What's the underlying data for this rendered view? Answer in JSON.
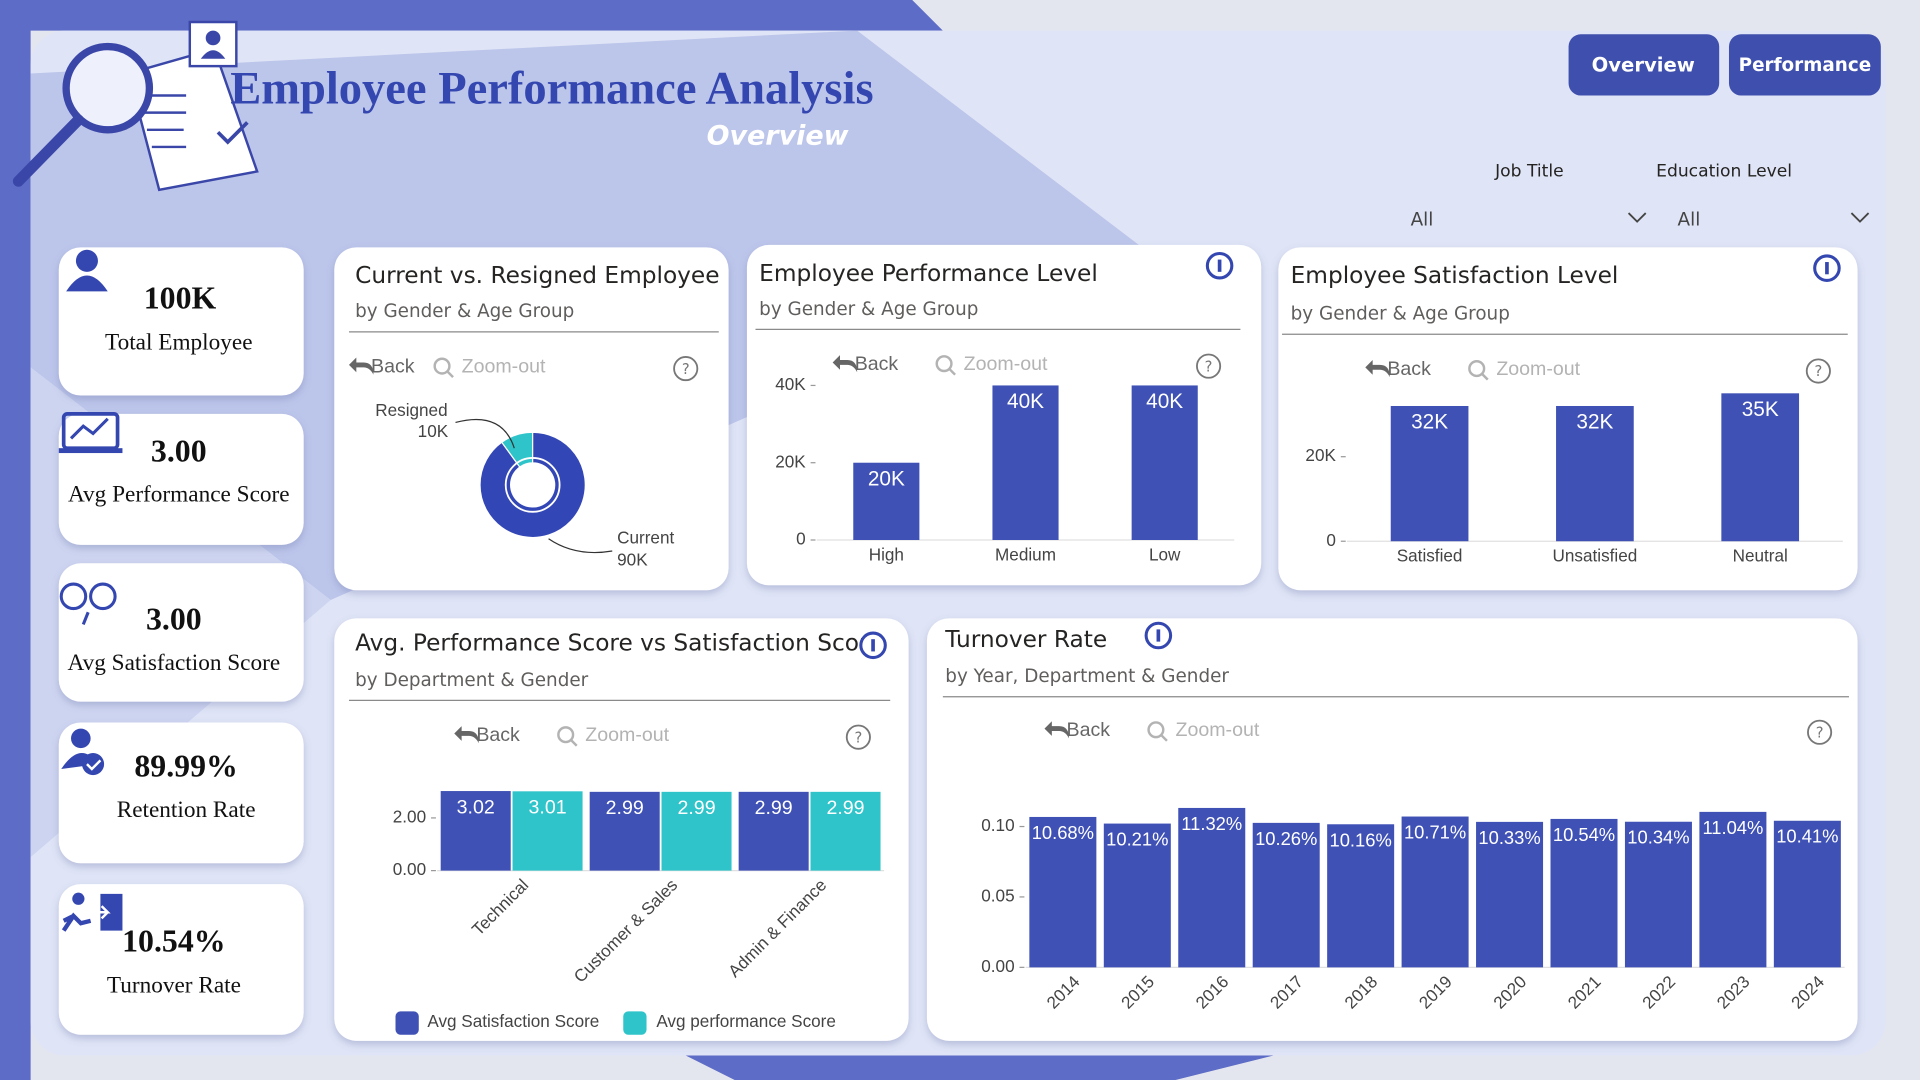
{
  "header": {
    "title": "Employee Performance Analysis",
    "subtitle": "Overview"
  },
  "nav": [
    "Overview",
    "Performance"
  ],
  "filters": [
    {
      "label": "Job Title",
      "value": "All"
    },
    {
      "label": "Education Level",
      "value": "All"
    }
  ],
  "kpis": [
    {
      "value": "100K",
      "label": "Total Employee"
    },
    {
      "value": "3.00",
      "label": "Avg Performance Score"
    },
    {
      "value": "3.00",
      "label": "Avg Satisfaction Score"
    },
    {
      "value": "89.99%",
      "label": "Retention Rate"
    },
    {
      "value": "10.54%",
      "label": "Turnover Rate"
    }
  ],
  "toolbar": {
    "back": "Back",
    "zoom": "Zoom-out"
  },
  "chart_data": [
    {
      "type": "pie",
      "title": "Current vs. Resigned Employee",
      "subtitle": "by Gender & Age Group",
      "categories": [
        "Resigned",
        "Current"
      ],
      "values": [
        10000,
        90000
      ],
      "value_labels": [
        "10K",
        "90K"
      ],
      "colors": [
        "#2ec4c9",
        "#3346b5"
      ]
    },
    {
      "type": "bar",
      "title": "Employee Performance Level",
      "subtitle": "by Gender & Age Group",
      "categories": [
        "High",
        "Medium",
        "Low"
      ],
      "values": [
        20000,
        40000,
        40000
      ],
      "value_labels": [
        "20K",
        "40K",
        "40K"
      ],
      "color": "#3f51b5",
      "ylim": [
        0,
        45000
      ],
      "yticks": [
        0,
        {
          "value": 20000,
          "label": "20K"
        },
        {
          "value": 40000,
          "label": "40K"
        }
      ]
    },
    {
      "type": "bar",
      "title": "Employee Satisfaction Level",
      "subtitle": "by Gender & Age Group",
      "categories": [
        "Satisfied",
        "Unsatisfied",
        "Neutral"
      ],
      "values": [
        32000,
        32000,
        35000
      ],
      "value_labels": [
        "32K",
        "32K",
        "35K"
      ],
      "color": "#3f51b5",
      "ylim": [
        0,
        41000
      ],
      "yticks": [
        0,
        {
          "value": 20000,
          "label": "20K"
        }
      ]
    },
    {
      "type": "bar",
      "title": "Avg. Performance Score vs Satisfaction Score",
      "subtitle": "by Department & Gender",
      "categories": [
        "Technical",
        "Customer & Sales",
        "Admin & Finance"
      ],
      "series": [
        {
          "name": "Avg Satisfaction Score",
          "color": "#3f51b5",
          "values": [
            3.02,
            2.99,
            2.99
          ]
        },
        {
          "name": "Avg performance Score",
          "color": "#2ec4c9",
          "values": [
            3.01,
            2.99,
            2.99
          ]
        }
      ],
      "ylim": [
        0,
        3.3
      ],
      "yticks": [
        {
          "value": 0,
          "label": "0.00"
        },
        {
          "value": 2,
          "label": "2.00"
        }
      ]
    },
    {
      "type": "bar",
      "title": "Turnover Rate",
      "subtitle": "by Year, Department & Gender",
      "categories": [
        "2014",
        "2015",
        "2016",
        "2017",
        "2018",
        "2019",
        "2020",
        "2021",
        "2022",
        "2023",
        "2024"
      ],
      "values": [
        0.1068,
        0.1021,
        0.1132,
        0.1026,
        0.1016,
        0.1071,
        0.1033,
        0.1054,
        0.1034,
        0.1104,
        0.1041
      ],
      "value_labels": [
        "10.68%",
        "10.21%",
        "11.32%",
        "10.26%",
        "10.16%",
        "10.71%",
        "10.33%",
        "10.54%",
        "10.34%",
        "11.04%",
        "10.41%"
      ],
      "color": "#3f51b5",
      "ylim": [
        0,
        0.12
      ],
      "yticks": [
        {
          "value": 0,
          "label": "0.00"
        },
        {
          "value": 0.05,
          "label": "0.05"
        },
        {
          "value": 0.1,
          "label": "0.10"
        }
      ]
    }
  ]
}
